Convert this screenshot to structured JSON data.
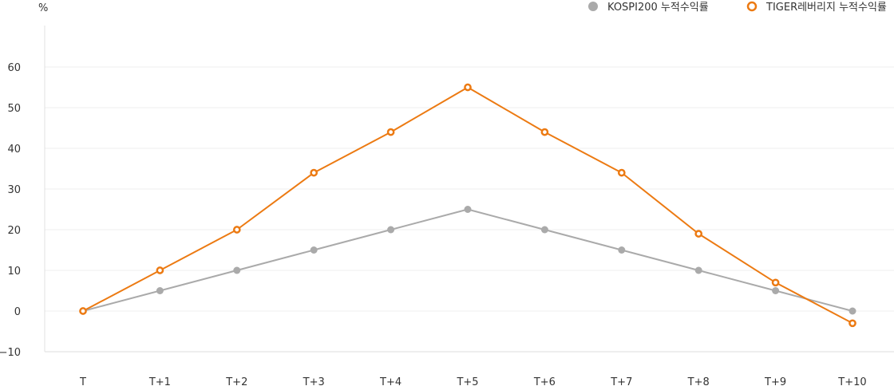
{
  "chart_data": {
    "type": "line",
    "unit_label": "%",
    "categories": [
      "T",
      "T+1",
      "T+2",
      "T+3",
      "T+4",
      "T+5",
      "T+6",
      "T+7",
      "T+8",
      "T+9",
      "T+10"
    ],
    "y_ticks": [
      60,
      50,
      40,
      30,
      20,
      10,
      0,
      -10
    ],
    "ylim": [
      -10,
      70
    ],
    "grid": true,
    "legend_position": "top-right",
    "series": [
      {
        "name": "KOSPI200 누적수익률",
        "color": "#aaaaaa",
        "marker": "filled-circle",
        "values": [
          0,
          5,
          10,
          15,
          20,
          25,
          20,
          15,
          10,
          5,
          0
        ]
      },
      {
        "name": "TIGER레버리지 누적수익률",
        "color": "#ec7a12",
        "marker": "hollow-circle",
        "values": [
          0,
          10,
          20,
          34,
          44,
          55,
          44,
          34,
          19,
          7,
          -3
        ]
      }
    ]
  }
}
